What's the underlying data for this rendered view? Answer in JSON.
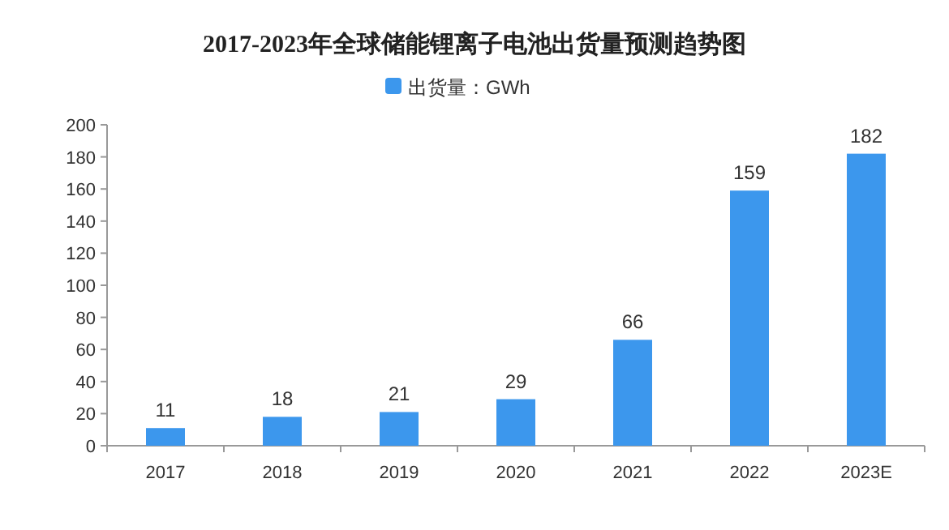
{
  "chart_data": {
    "type": "bar",
    "title": "2017-2023年全球储能锂离子电池出货量预测趋势图",
    "categories": [
      "2017",
      "2018",
      "2019",
      "2020",
      "2021",
      "2022",
      "2023E"
    ],
    "series": [
      {
        "name": "出货量：GWh",
        "color": "#3c97ed",
        "values": [
          11,
          18,
          21,
          29,
          66,
          159,
          182
        ]
      }
    ],
    "ylim": [
      0,
      200
    ],
    "yticks": [
      0,
      20,
      40,
      60,
      80,
      100,
      120,
      140,
      160,
      180,
      200
    ],
    "data_labels": true,
    "legend": "top",
    "grid": false
  }
}
